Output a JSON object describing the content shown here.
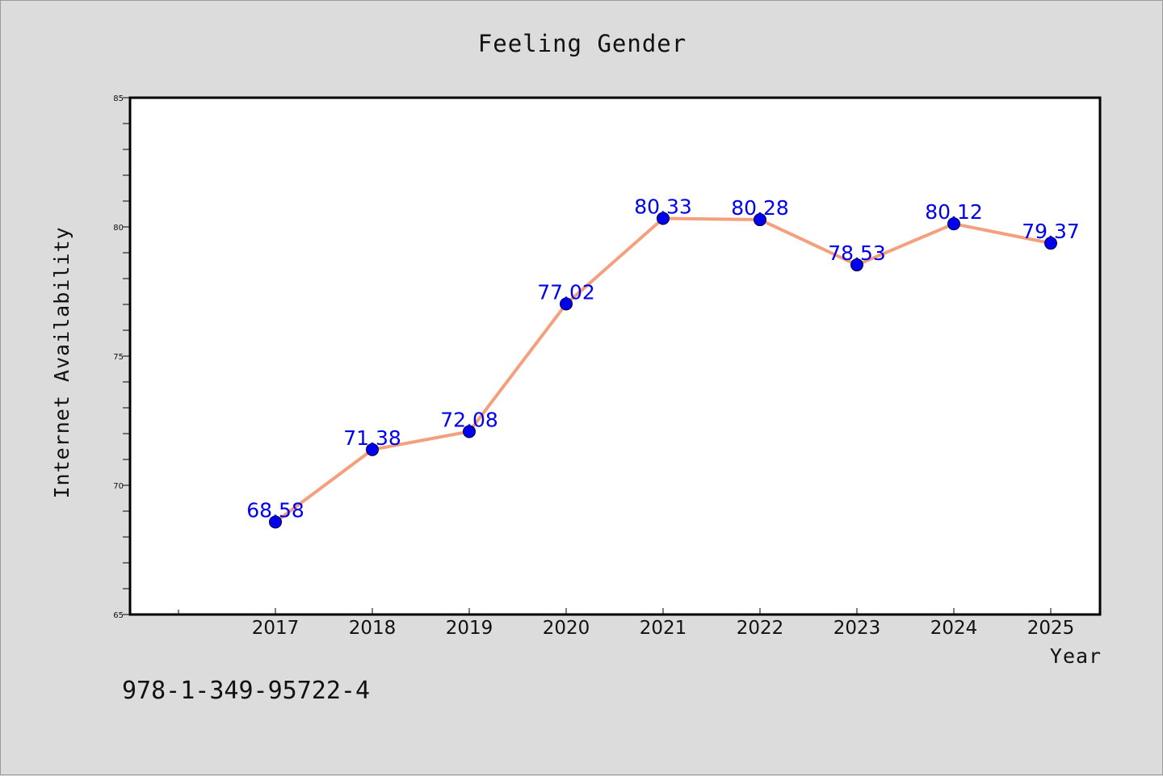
{
  "colors": {
    "background": "#dcdcdc",
    "plot_background": "#ffffff",
    "line": "#f4a07e",
    "marker": "#0000ee",
    "data_label": "#0000ee",
    "axis": "#000000"
  },
  "isbn": "978-1-349-95722-4",
  "chart_data": {
    "type": "line",
    "title": "Feeling Gender",
    "xlabel": "Year",
    "ylabel": "Internet Availability",
    "categories": [
      "2017",
      "2018",
      "2019",
      "2020",
      "2021",
      "2022",
      "2023",
      "2024",
      "2025"
    ],
    "series": [
      {
        "values": [
          68.58,
          71.38,
          72.08,
          77.02,
          80.33,
          80.28,
          78.53,
          80.12,
          79.37
        ],
        "labels": [
          "68.58",
          "71.38",
          "72.08",
          "77.02",
          "80.33",
          "80.28",
          "78.53",
          "80.12",
          "79.37"
        ]
      }
    ],
    "ylim": [
      65,
      85
    ],
    "y_ticks": [
      "65",
      "70",
      "75",
      "80",
      "85"
    ],
    "y_minor_step": 1,
    "grid": false,
    "legend": "none"
  }
}
